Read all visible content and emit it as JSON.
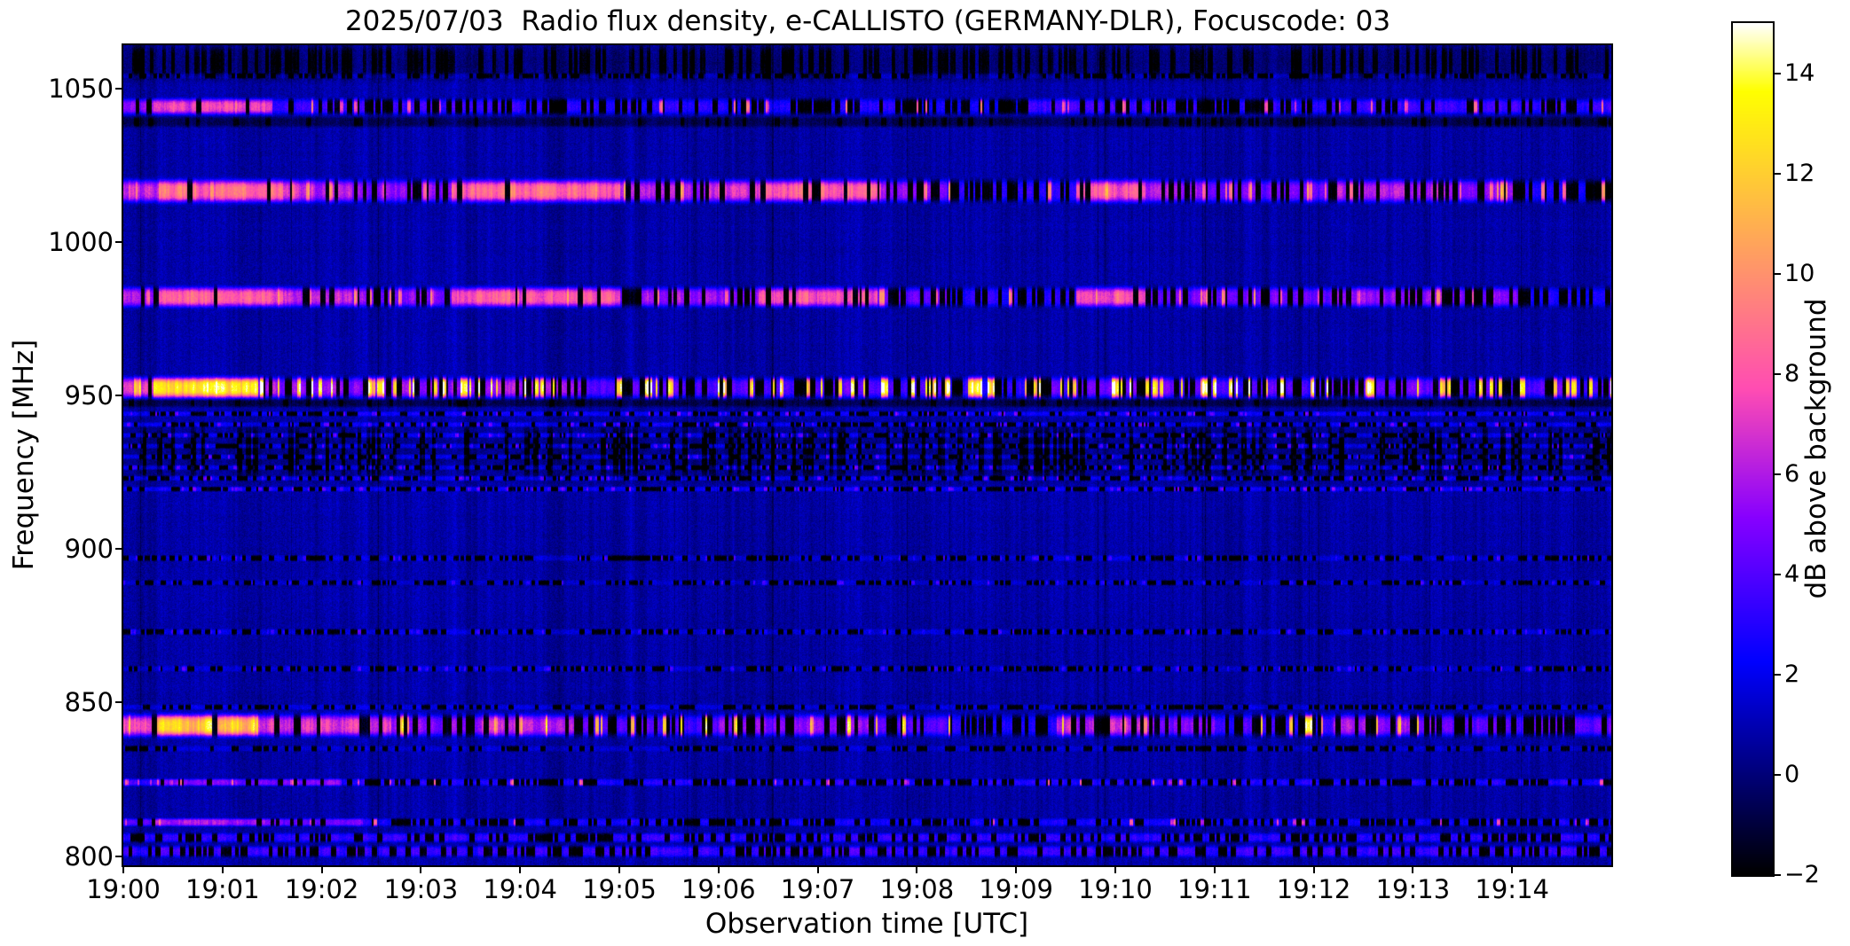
{
  "figure": {
    "title": "2025/07/03  Radio flux density, e-CALLISTO (GERMANY-DLR), Focuscode: 03",
    "xlabel": "Observation time [UTC]",
    "ylabel": "Frequency [MHz]",
    "colorbar_label": "dB above background"
  },
  "colors": {
    "page_background": "#ffffff",
    "text": "#000000",
    "axis_spine": "#000000",
    "quiet_background_blue": "#0d0da0",
    "peak_white": "#ffffff"
  },
  "chart_data": {
    "type": "heatmap",
    "subtype": "radio-spectrogram",
    "title": "2025/07/03  Radio flux density, e-CALLISTO (GERMANY-DLR), Focuscode: 03",
    "xlabel": "Observation time [UTC]",
    "ylabel": "Frequency [MHz]",
    "colorbar_label": "dB above background",
    "colormap": "gnuplot2",
    "grid": false,
    "legend": "none (colorbar on right)",
    "x_range_minutes": [
      0,
      15
    ],
    "x_start_time_utc": "19:00",
    "x_ticks": [
      {
        "minute": 0,
        "label": "19:00"
      },
      {
        "minute": 1,
        "label": "19:01"
      },
      {
        "minute": 2,
        "label": "19:02"
      },
      {
        "minute": 3,
        "label": "19:03"
      },
      {
        "minute": 4,
        "label": "19:04"
      },
      {
        "minute": 5,
        "label": "19:05"
      },
      {
        "minute": 6,
        "label": "19:06"
      },
      {
        "minute": 7,
        "label": "19:07"
      },
      {
        "minute": 8,
        "label": "19:08"
      },
      {
        "minute": 9,
        "label": "19:09"
      },
      {
        "minute": 10,
        "label": "19:10"
      },
      {
        "minute": 11,
        "label": "19:11"
      },
      {
        "minute": 12,
        "label": "19:12"
      },
      {
        "minute": 13,
        "label": "19:13"
      },
      {
        "minute": 14,
        "label": "19:14"
      }
    ],
    "y_range_mhz": [
      797,
      1064
    ],
    "y_ticks": [
      {
        "mhz": 1050,
        "label": "1050"
      },
      {
        "mhz": 1000,
        "label": "1000"
      },
      {
        "mhz": 950,
        "label": "950"
      },
      {
        "mhz": 900,
        "label": "900"
      },
      {
        "mhz": 850,
        "label": "850"
      },
      {
        "mhz": 800,
        "label": "800"
      }
    ],
    "value_range_db": [
      -2,
      15
    ],
    "colorbar_ticks": [
      {
        "value": 14,
        "label": "14"
      },
      {
        "value": 12,
        "label": "12"
      },
      {
        "value": 10,
        "label": "10"
      },
      {
        "value": 8,
        "label": "8"
      },
      {
        "value": 6,
        "label": "6"
      },
      {
        "value": 4,
        "label": "4"
      },
      {
        "value": 2,
        "label": "2"
      },
      {
        "value": 0,
        "label": "0"
      },
      {
        "value": -2,
        "label": "−2"
      }
    ],
    "texture": {
      "background_db": 0.75,
      "pixel_noise_db": 1.15,
      "column_noise_db": 0.95,
      "row_noise_db": 0.2,
      "dropout_db": -3.4,
      "seed": 1337
    },
    "bands": [
      {
        "name": "rfi-1058-dark-top",
        "center_mhz": 1058.5,
        "half_width_mhz": 5.2,
        "segments": [
          [
            0,
            15,
            -0.85,
            0.4
          ]
        ]
      },
      {
        "name": "rfi-1054-faint",
        "center_mhz": 1054,
        "half_width_mhz": 0.8,
        "segments": [
          [
            0,
            15,
            1.0,
            0.5
          ]
        ]
      },
      {
        "name": "rfi-1044",
        "center_mhz": 1044,
        "half_width_mhz": 2.4,
        "segments": [
          [
            0,
            0.3,
            5.5,
            0.2
          ],
          [
            0.3,
            1.5,
            7.8,
            0.08
          ],
          [
            1.5,
            4,
            3.2,
            0.5
          ],
          [
            4,
            8,
            2.8,
            0.55
          ],
          [
            8,
            9,
            2,
            0.65
          ],
          [
            9,
            10.5,
            3.4,
            0.5
          ],
          [
            10.5,
            12,
            3,
            0.5
          ],
          [
            12,
            15,
            3.2,
            0.45
          ]
        ],
        "spikes": {
          "per_min": 1.5,
          "db": 7.5,
          "var": 1.5
        }
      },
      {
        "name": "rfi-1039-dark",
        "center_mhz": 1039,
        "half_width_mhz": 1.6,
        "segments": [
          [
            0,
            15,
            -1.6,
            0.2
          ]
        ]
      },
      {
        "name": "rfi-1016",
        "center_mhz": 1016.5,
        "half_width_mhz": 3.4,
        "segments": [
          [
            0,
            0.35,
            7,
            0.15
          ],
          [
            0.35,
            1.6,
            9.3,
            0.04
          ],
          [
            1.6,
            2.3,
            7,
            0.25
          ],
          [
            2.3,
            3.3,
            5.5,
            0.45
          ],
          [
            3.3,
            5,
            9.2,
            0.07
          ],
          [
            5,
            5.9,
            6,
            0.35
          ],
          [
            5.9,
            6.4,
            7,
            0.3
          ],
          [
            6.4,
            7.6,
            8.8,
            0.12
          ],
          [
            7.6,
            8.3,
            5.5,
            0.5
          ],
          [
            8.3,
            9.6,
            2.8,
            0.75
          ],
          [
            9.6,
            10.3,
            8.6,
            0.18
          ],
          [
            10.3,
            10.9,
            6,
            0.4
          ],
          [
            10.9,
            12.2,
            4.5,
            0.55
          ],
          [
            12.2,
            13.3,
            6,
            0.38
          ],
          [
            13.3,
            14.1,
            5.5,
            0.35
          ],
          [
            14.1,
            15,
            2.5,
            0.7
          ]
        ],
        "spikes": {
          "per_min": 2.5,
          "db": 8.5,
          "var": 1.5
        }
      },
      {
        "name": "rfi-982",
        "center_mhz": 982,
        "half_width_mhz": 3.0,
        "segments": [
          [
            0,
            0.35,
            6.5,
            0.15
          ],
          [
            0.35,
            1.6,
            8.8,
            0.06
          ],
          [
            1.6,
            2.3,
            6.5,
            0.3
          ],
          [
            2.3,
            3.3,
            5,
            0.45
          ],
          [
            3.3,
            5,
            8.6,
            0.09
          ],
          [
            5,
            6.4,
            5.5,
            0.4
          ],
          [
            6.4,
            7.6,
            8.2,
            0.15
          ],
          [
            7.6,
            8.3,
            4.5,
            0.5
          ],
          [
            8.3,
            9.6,
            2.6,
            0.75
          ],
          [
            9.6,
            10.3,
            7.8,
            0.22
          ],
          [
            10.3,
            12.2,
            4.5,
            0.55
          ],
          [
            12.2,
            13.3,
            5.5,
            0.42
          ],
          [
            13.3,
            14.15,
            5,
            0.4
          ],
          [
            14.15,
            15,
            2.5,
            0.7
          ]
        ],
        "spikes": {
          "per_min": 2,
          "db": 8,
          "var": 1.5
        }
      },
      {
        "name": "rfi-952-strong",
        "center_mhz": 952.5,
        "half_width_mhz": 3.1,
        "segments": [
          [
            0,
            0.3,
            8,
            0.1
          ],
          [
            0.3,
            1.35,
            14.8,
            0.02
          ],
          [
            1.35,
            3.6,
            5.5,
            0.5
          ],
          [
            3.6,
            4.6,
            6,
            0.45
          ],
          [
            4.6,
            8.3,
            4,
            0.58
          ],
          [
            8.3,
            9.3,
            3,
            0.68
          ],
          [
            9.3,
            10.6,
            4.5,
            0.5
          ],
          [
            10.6,
            12.3,
            4,
            0.58
          ],
          [
            12.3,
            13.4,
            4.5,
            0.55
          ],
          [
            13.4,
            15,
            4,
            0.58
          ]
        ],
        "spikes": {
          "per_min": 7,
          "db": 12.5,
          "var": 3
        }
      },
      {
        "name": "rfi-947-dark",
        "center_mhz": 947.5,
        "half_width_mhz": 1.3,
        "segments": [
          [
            0,
            15,
            -1.8,
            0.15
          ]
        ]
      },
      {
        "name": "speckle-backdrop-931",
        "center_mhz": 931.5,
        "half_width_mhz": 8,
        "segments": [
          [
            0,
            15,
            -0.55,
            0.3
          ]
        ]
      },
      {
        "name": "speckle-944",
        "center_mhz": 944,
        "half_width_mhz": 0.75,
        "segments": [
          [
            0,
            15,
            1.9,
            0.45
          ]
        ],
        "spikes": {
          "per_min": 4,
          "db": 3.5,
          "var": 1
        }
      },
      {
        "name": "speckle-940",
        "center_mhz": 940.5,
        "half_width_mhz": 0.75,
        "segments": [
          [
            0,
            15,
            1.9,
            0.45
          ]
        ],
        "spikes": {
          "per_min": 4,
          "db": 3.5,
          "var": 1
        }
      },
      {
        "name": "speckle-937",
        "center_mhz": 937,
        "half_width_mhz": 0.75,
        "segments": [
          [
            0,
            15,
            1.9,
            0.45
          ]
        ],
        "spikes": {
          "per_min": 4,
          "db": 3.5,
          "var": 1
        }
      },
      {
        "name": "speckle-933",
        "center_mhz": 933.5,
        "half_width_mhz": 0.75,
        "segments": [
          [
            0,
            15,
            1.9,
            0.45
          ]
        ],
        "spikes": {
          "per_min": 4,
          "db": 3.5,
          "var": 1
        }
      },
      {
        "name": "speckle-930",
        "center_mhz": 930,
        "half_width_mhz": 0.75,
        "segments": [
          [
            0,
            15,
            1.9,
            0.45
          ]
        ],
        "spikes": {
          "per_min": 4,
          "db": 3.5,
          "var": 1
        }
      },
      {
        "name": "speckle-926",
        "center_mhz": 926.5,
        "half_width_mhz": 0.75,
        "segments": [
          [
            0,
            15,
            1.9,
            0.45
          ]
        ],
        "spikes": {
          "per_min": 4,
          "db": 3.5,
          "var": 1
        }
      },
      {
        "name": "speckle-923",
        "center_mhz": 923,
        "half_width_mhz": 0.75,
        "segments": [
          [
            0,
            15,
            1.9,
            0.45
          ]
        ],
        "spikes": {
          "per_min": 4,
          "db": 3.5,
          "var": 1
        }
      },
      {
        "name": "speckle-919",
        "center_mhz": 919.5,
        "half_width_mhz": 0.75,
        "segments": [
          [
            0,
            15,
            1.9,
            0.45
          ]
        ],
        "spikes": {
          "per_min": 4,
          "db": 3.5,
          "var": 1
        }
      },
      {
        "name": "faint-897",
        "center_mhz": 897,
        "half_width_mhz": 0.9,
        "segments": [
          [
            0,
            15,
            1.1,
            0.5
          ]
        ],
        "spikes": {
          "per_min": 3,
          "db": 2.5,
          "var": 0.8
        }
      },
      {
        "name": "faint-889",
        "center_mhz": 889,
        "half_width_mhz": 0.8,
        "segments": [
          [
            0,
            15,
            0.9,
            0.5
          ]
        ],
        "spikes": {
          "per_min": 3,
          "db": 2.5,
          "var": 0.8
        }
      },
      {
        "name": "faint-873",
        "center_mhz": 873,
        "half_width_mhz": 0.9,
        "segments": [
          [
            0,
            15,
            1.2,
            0.5
          ]
        ],
        "spikes": {
          "per_min": 3,
          "db": 2.5,
          "var": 0.8
        }
      },
      {
        "name": "faint-861",
        "center_mhz": 861,
        "half_width_mhz": 0.9,
        "segments": [
          [
            0,
            15,
            1.1,
            0.5
          ]
        ],
        "spikes": {
          "per_min": 3,
          "db": 2.5,
          "var": 0.8
        }
      },
      {
        "name": "faint-848",
        "center_mhz": 848.5,
        "half_width_mhz": 0.8,
        "segments": [
          [
            0,
            15,
            1.2,
            0.5
          ]
        ]
      },
      {
        "name": "rfi-842-strong",
        "center_mhz": 842.5,
        "half_width_mhz": 3.3,
        "segments": [
          [
            0,
            0.3,
            8,
            0.1
          ],
          [
            0.3,
            1.35,
            13,
            0.03
          ],
          [
            1.35,
            2.7,
            7.5,
            0.28
          ],
          [
            2.7,
            3.6,
            5,
            0.5
          ],
          [
            3.6,
            4.6,
            6.5,
            0.4
          ],
          [
            4.6,
            6,
            4,
            0.55
          ],
          [
            6,
            7.5,
            5.5,
            0.45
          ],
          [
            7.5,
            8.3,
            4,
            0.55
          ],
          [
            8.3,
            9.4,
            2.5,
            0.72
          ],
          [
            9.4,
            10.3,
            6.5,
            0.4
          ],
          [
            10.3,
            11,
            5,
            0.5
          ],
          [
            11,
            12.2,
            3.5,
            0.62
          ],
          [
            12.2,
            13.2,
            5.5,
            0.45
          ],
          [
            13.2,
            14.2,
            4,
            0.58
          ],
          [
            14.2,
            15,
            4.5,
            0.5
          ]
        ],
        "spikes": {
          "per_min": 2.5,
          "db": 11,
          "var": 2.5
        }
      },
      {
        "name": "faint-835",
        "center_mhz": 835,
        "half_width_mhz": 0.9,
        "segments": [
          [
            0,
            15,
            1.0,
            0.5
          ]
        ]
      },
      {
        "name": "rfi-824",
        "center_mhz": 824,
        "half_width_mhz": 1.1,
        "segments": [
          [
            0,
            0.3,
            3.5,
            0.25
          ],
          [
            0.3,
            2.2,
            5,
            0.18
          ],
          [
            2.2,
            15,
            2.6,
            0.5
          ]
        ],
        "spikes": {
          "per_min": 1.5,
          "db": 6.5,
          "var": 1.5
        }
      },
      {
        "name": "rfi-811",
        "center_mhz": 811,
        "half_width_mhz": 1.2,
        "segments": [
          [
            0,
            0.3,
            4,
            0.2
          ],
          [
            0.3,
            1.5,
            6,
            0.1
          ],
          [
            1.5,
            2.4,
            4.5,
            0.3
          ],
          [
            2.4,
            15,
            2.2,
            0.55
          ]
        ],
        "spikes": {
          "per_min": 1.2,
          "db": 6.5,
          "var": 1.5
        }
      },
      {
        "name": "rfi-806",
        "center_mhz": 806,
        "half_width_mhz": 1.4,
        "segments": [
          [
            0,
            15,
            2.9,
            0.45
          ]
        ]
      },
      {
        "name": "rfi-801",
        "center_mhz": 801.5,
        "half_width_mhz": 1.7,
        "segments": [
          [
            0,
            15,
            3.2,
            0.42
          ]
        ]
      }
    ]
  }
}
